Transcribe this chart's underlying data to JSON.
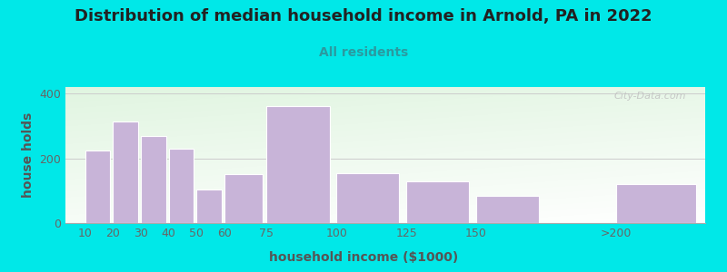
{
  "title": "Distribution of median household income in Arnold, PA in 2022",
  "subtitle": "All residents",
  "xlabel": "household income ($1000)",
  "ylabel": "house holds",
  "categories": [
    "10",
    "20",
    "30",
    "40",
    "50",
    "60",
    "75",
    "100",
    "125",
    "150",
    ">200"
  ],
  "values": [
    225,
    315,
    270,
    230,
    105,
    150,
    360,
    155,
    130,
    85,
    120
  ],
  "bar_color": "#c8b4d8",
  "bar_edge_color": "#ffffff",
  "background_outer": "#00e8e8",
  "title_color": "#222222",
  "subtitle_color": "#2a9aa0",
  "axis_label_color": "#555555",
  "tick_color": "#666666",
  "ylim": [
    0,
    420
  ],
  "yticks": [
    0,
    200,
    400
  ],
  "watermark_text": "ⓘ  City-Data.com",
  "title_fontsize": 13,
  "subtitle_fontsize": 10,
  "axis_label_fontsize": 10
}
